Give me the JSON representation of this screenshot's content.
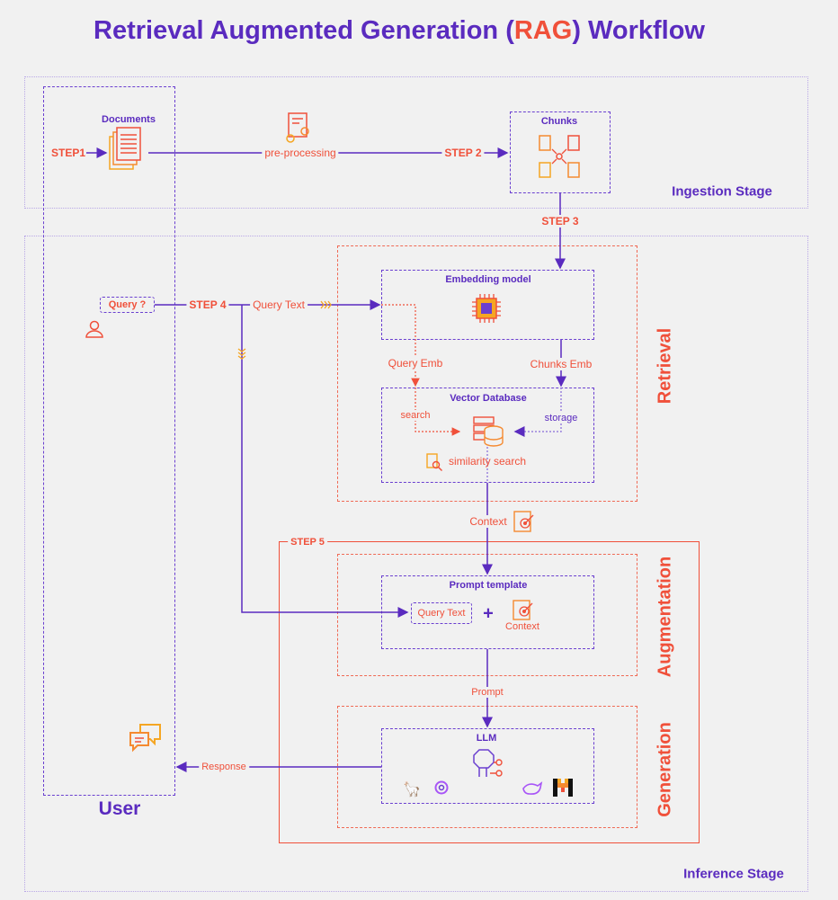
{
  "title": {
    "before": "Retrieval Augmented Generation (",
    "highlight": "RAG",
    "after": ") Workflow"
  },
  "stages": {
    "ingestion": "Ingestion Stage",
    "inference": "Inference Stage"
  },
  "user": {
    "label": "User",
    "query_bubble": "Query ?"
  },
  "ingestion": {
    "documents": "Documents",
    "step1": "STEP1",
    "preprocessing": "pre-processing",
    "step2": "STEP 2",
    "chunks": "Chunks",
    "step3": "STEP 3"
  },
  "retrieval": {
    "section": "Retrieval",
    "step4": "STEP 4",
    "query_text": "Query Text",
    "embedding_model": "Embedding model",
    "query_emb": "Query Emb",
    "chunks_emb": "Chunks Emb",
    "vector_db": "Vector Database",
    "search": "search",
    "storage": "storage",
    "similarity_search": "similarity search",
    "context": "Context"
  },
  "augmentation": {
    "step5": "STEP 5",
    "section": "Augmentation",
    "prompt_template": "Prompt template",
    "query_text": "Query Text",
    "plus": "+",
    "context": "Context",
    "prompt": "Prompt"
  },
  "generation": {
    "section": "Generation",
    "llm": "LLM",
    "response": "Response"
  },
  "colors": {
    "purple": "#5a2bbf",
    "red": "#f0503a",
    "orange": "#f5a623",
    "background": "#f1f1f1"
  }
}
